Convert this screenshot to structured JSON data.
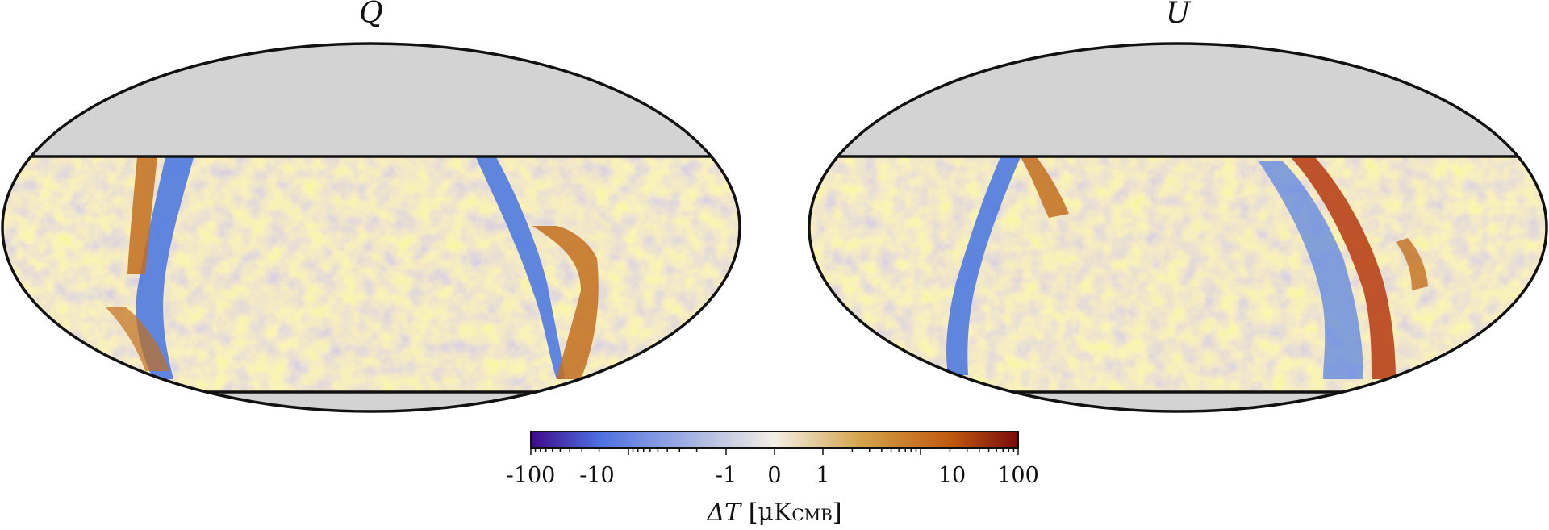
{
  "maps": [
    {
      "id": "Q",
      "title": "Q",
      "masked_color": "#d3d3d3"
    },
    {
      "id": "U",
      "title": "U",
      "masked_color": "#d3d3d3"
    }
  ],
  "colorbar": {
    "tick_labels": [
      "-100",
      "-10",
      "-1",
      "0",
      "1",
      "10",
      "100"
    ],
    "title_symbol": "ΔT",
    "title_unit": "μK",
    "title_unit_sub": "CMB",
    "scale": "symlog",
    "range": [
      -100,
      100
    ],
    "colors": [
      "#3d0a8a",
      "#4d6fe0",
      "#f3efe4",
      "#d4a24a",
      "#c05a0f",
      "#7a0a0a"
    ]
  }
}
